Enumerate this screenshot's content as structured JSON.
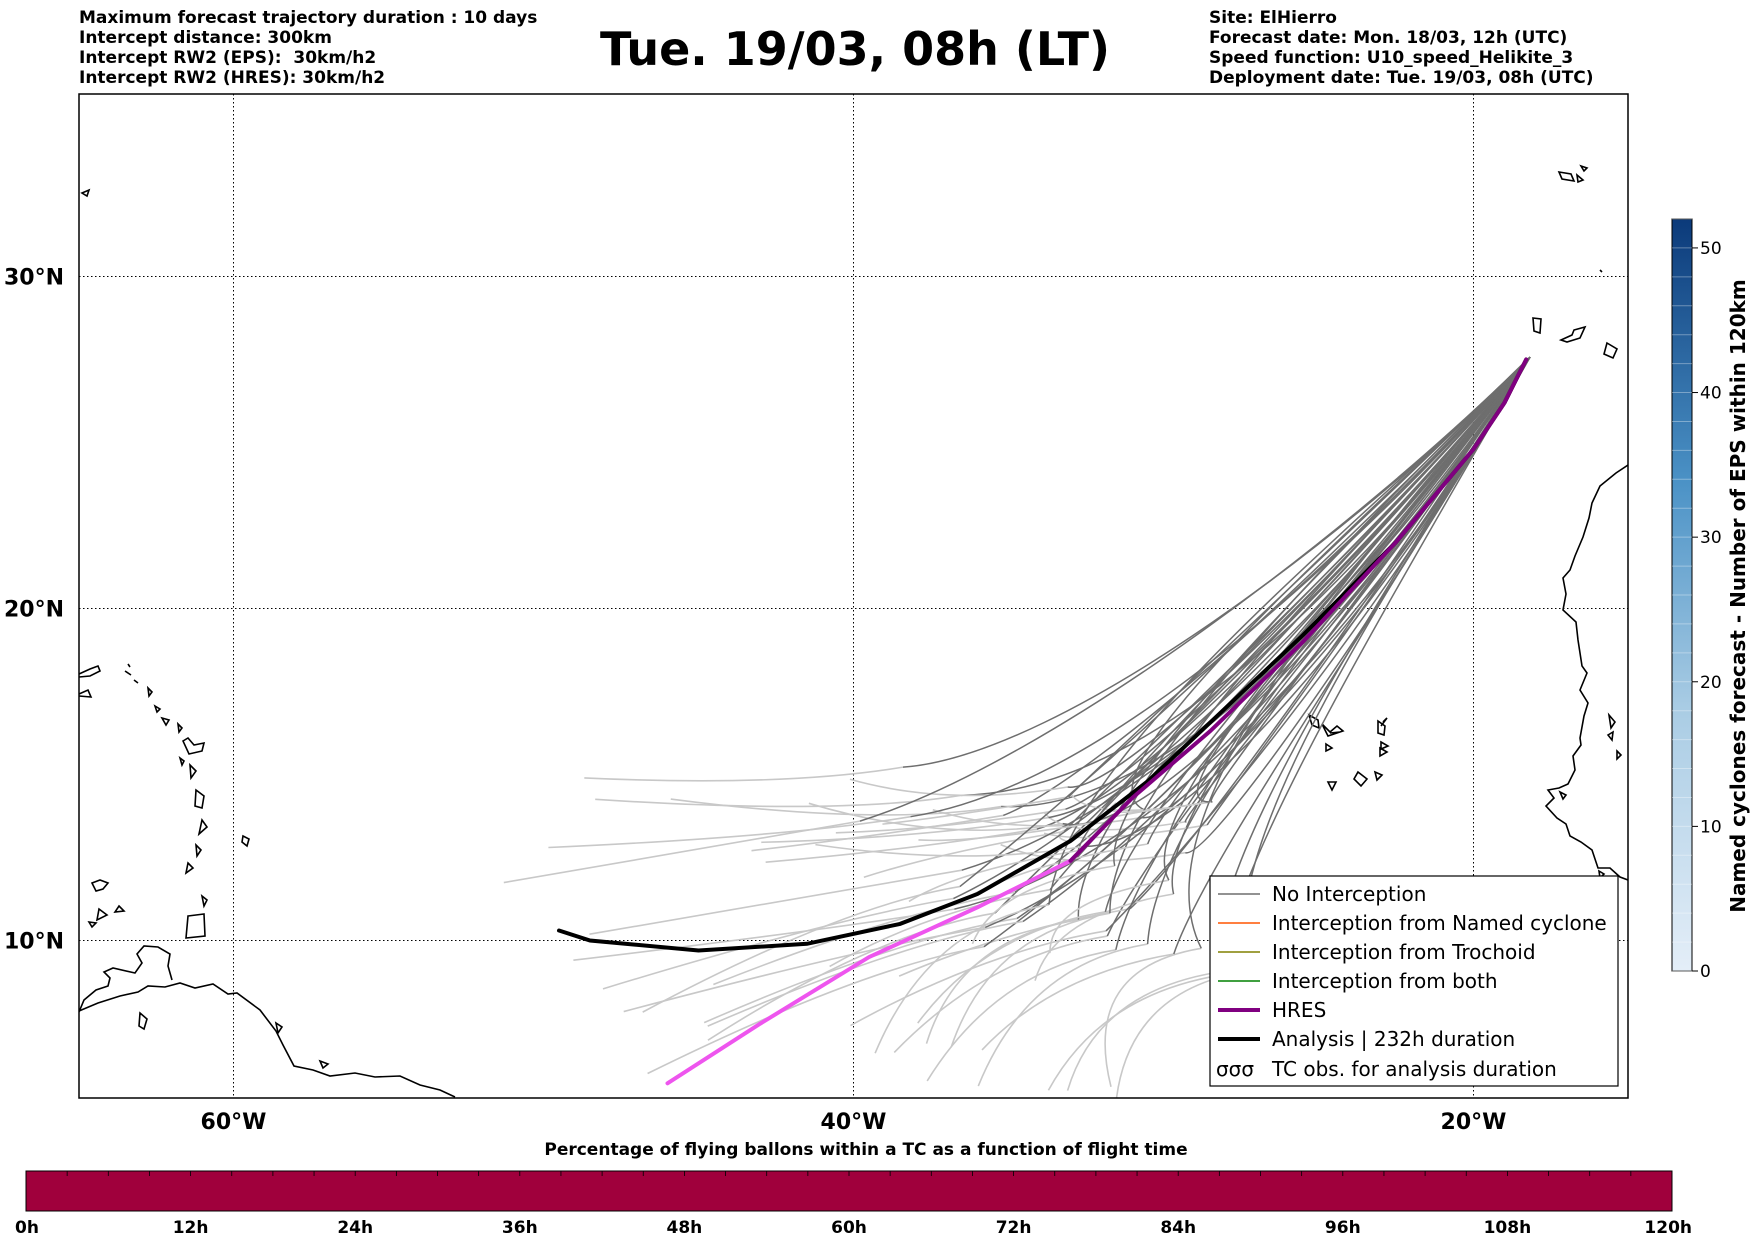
{
  "header": {
    "left": [
      "Maximum forecast trajectory duration : 10 days",
      "Intercept distance: 300km",
      "Intercept RW2 (EPS):  30km/h2",
      "Intercept RW2 (HRES): 30km/h2"
    ],
    "title": "Tue. 19/03, 08h (LT)",
    "right": [
      "Site: ElHierro",
      "Forecast date: Mon. 18/03, 12h (UTC)",
      "Speed function: U10_speed_Helikite_3",
      "Deployment date: Tue. 19/03, 08h (UTC)"
    ]
  },
  "map": {
    "lon_range": [
      -65,
      15
    ],
    "lat_range": [
      5.4,
      34.7
    ],
    "lat_ticks": [
      {
        "value": 30,
        "label": "30°N"
      },
      {
        "value": 20,
        "label": "20°N"
      },
      {
        "value": 10,
        "label": "10°N"
      }
    ],
    "lon_ticks": [
      {
        "value": -60,
        "label": "60°W"
      },
      {
        "value": -40,
        "label": "40°W"
      },
      {
        "value": -20,
        "label": "20°W"
      }
    ],
    "gridlines": true,
    "colors": {
      "no_interception": "#6e6e6e",
      "no_interception_light": "#c8c8c8",
      "named_cyclone": "#ff5500",
      "trochoid": "#808000",
      "both": "#008000",
      "hres": "#800080",
      "hres_light": "#ee55ee",
      "analysis": "#000000"
    },
    "hres_track": [
      [
        -18.3,
        27.5
      ],
      [
        -19.0,
        26.2
      ],
      [
        -20.0,
        24.8
      ],
      [
        -22.5,
        22.0
      ],
      [
        -25.5,
        19.0
      ],
      [
        -28.5,
        16.3
      ],
      [
        -31.0,
        14.3
      ],
      [
        -33.0,
        12.4
      ],
      [
        -36.0,
        11.0
      ],
      [
        -39.5,
        9.5
      ],
      [
        -43.0,
        7.5
      ],
      [
        -46.0,
        5.7
      ]
    ],
    "analysis_track": [
      [
        -18.3,
        27.5
      ],
      [
        -19.0,
        26.2
      ],
      [
        -20.0,
        24.8
      ],
      [
        -22.5,
        22.0
      ],
      [
        -25.5,
        19.2
      ],
      [
        -28.0,
        17.0
      ],
      [
        -30.5,
        14.8
      ],
      [
        -33.0,
        13.0
      ],
      [
        -36.0,
        11.4
      ],
      [
        -38.5,
        10.5
      ],
      [
        -41.5,
        9.9
      ],
      [
        -45.0,
        9.7
      ],
      [
        -48.5,
        10.0
      ],
      [
        -49.5,
        10.3
      ]
    ]
  },
  "legend": {
    "items": [
      {
        "label": "No Interception",
        "color": "#6e6e6e",
        "width": 1.5
      },
      {
        "label": "Interception from Named cyclone",
        "color": "#ff5500",
        "width": 1.5
      },
      {
        "label": "Interception from Trochoid",
        "color": "#808000",
        "width": 1.5
      },
      {
        "label": "Interception from both",
        "color": "#008000",
        "width": 1.5
      },
      {
        "label": "HRES",
        "color": "#800080",
        "width": 4
      },
      {
        "label": "Analysis | 232h duration",
        "color": "#000000",
        "width": 4
      }
    ],
    "tc_obs_label": "TC obs. for analysis duration",
    "tc_obs_symbol": "σσσ"
  },
  "colorbar": {
    "title": "Named cyclones forecast - Number of EPS within 120km",
    "min": 0,
    "max": 52,
    "ticks": [
      0,
      10,
      20,
      30,
      40,
      50
    ],
    "color_low": "#e4eef8",
    "color_high": "#0b3a7a"
  },
  "timebar": {
    "title": "Percentage of flying ballons within a TC as a function of flight time",
    "labels": [
      "0h",
      "12h",
      "24h",
      "36h",
      "48h",
      "60h",
      "72h",
      "84h",
      "96h",
      "108h",
      "120h"
    ],
    "fill_color": "#a0003c",
    "percentage": 0
  }
}
